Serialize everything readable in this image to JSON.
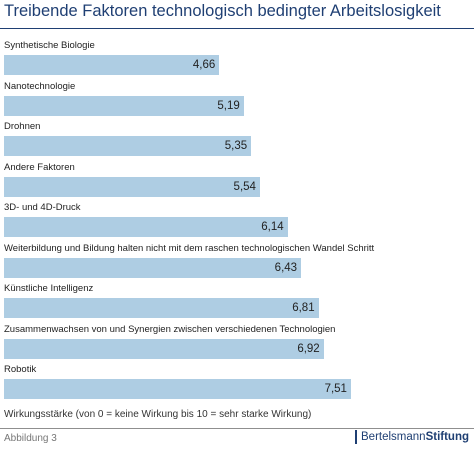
{
  "title": "Treibende Faktoren technologisch bedingter Arbeitslosigkeit",
  "footnote": "Wirkungsstärke (von 0 = keine Wirkung bis 10 = sehr starke Wirkung)",
  "figure_label": "Abbildung 3",
  "brand": {
    "part1": "Bertelsmann",
    "part2": "Stiftung"
  },
  "colors": {
    "bar": "#aecde3",
    "title": "#1f3f73"
  },
  "chart_data": {
    "type": "bar",
    "orientation": "horizontal",
    "categories": [
      "Synthetische Biologie",
      "Nanotechnologie",
      "Drohnen",
      "Andere Faktoren",
      "3D- und 4D-Druck",
      "Weiterbildung und Bildung halten nicht mit dem raschen technologischen Wandel Schritt",
      "Künstliche Intelligenz",
      "Zusammenwachsen von und Synergien zwischen verschiedenen Technologien",
      "Robotik"
    ],
    "values": [
      4.66,
      5.19,
      5.35,
      5.54,
      6.14,
      6.43,
      6.81,
      6.92,
      7.51
    ],
    "value_labels": [
      "4,66",
      "5,19",
      "5,35",
      "5,54",
      "6,14",
      "6,43",
      "6,81",
      "6,92",
      "7,51"
    ],
    "xlim": [
      0,
      10
    ],
    "grid": false,
    "legend": "none"
  }
}
